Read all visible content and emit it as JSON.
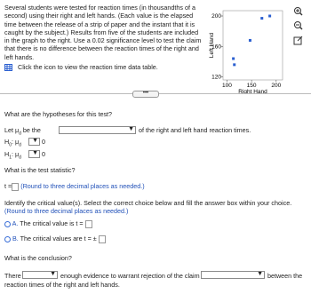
{
  "problem": {
    "text": "Several students were tested for reaction times (in thousandths of a second) using their right and left hands. (Each value is the elapsed time between the release of a strip of paper and the instant that it is caught by the subject.) Results from five of the students are included in the graph to the right. Use a 0.02 significance level to test the claim that there is no difference between the reaction times of the right and left hands.",
    "link": "Click the icon to view the reaction time data table."
  },
  "plot": {
    "type": "scatter",
    "x_label": "Right Hand",
    "y_label": "Left Hand",
    "color": "#2a5fd0",
    "x": [
      113,
      115,
      147,
      171,
      187
    ],
    "y": [
      144,
      136,
      168,
      197,
      200
    ],
    "xlim": [
      92,
      213
    ],
    "ylim": [
      116,
      207
    ],
    "xticks": [
      100,
      150,
      200
    ],
    "yticks": [
      120,
      160,
      200
    ]
  },
  "questions": {
    "hypotheses": "What are the hypotheses for this test?",
    "let_prefix": "Let μ",
    "let_sub": "d",
    "let_mid": " be the",
    "let_suffix": "of the right and left hand reaction times.",
    "h0": {
      "letter": "H",
      "sub": "0",
      "mu": ": μ",
      "mu_sub": "d",
      "value": "0"
    },
    "h1": {
      "letter": "H",
      "sub": "1",
      "mu": ": μ",
      "mu_sub": "d",
      "value": "0"
    },
    "statistic": "What is the test statistic?",
    "t_label": "t =",
    "round": "(Round to three decimal places as needed.)",
    "critical": "Identify the critical value(s). Select the correct choice below and fill the answer box within your choice.",
    "critical_round": "(Round to three decimal places as needed.)",
    "choice_a": {
      "letter": "A.",
      "text": "The critical value is t ="
    },
    "choice_b": {
      "letter": "B.",
      "text": "The critical values are t = ±"
    },
    "conclusion": "What is the conclusion?",
    "there": "There",
    "claim": "enough evidence to warrant rejection of the claim that there is",
    "between": "between the",
    "end": "reaction times of the right and left hands."
  }
}
